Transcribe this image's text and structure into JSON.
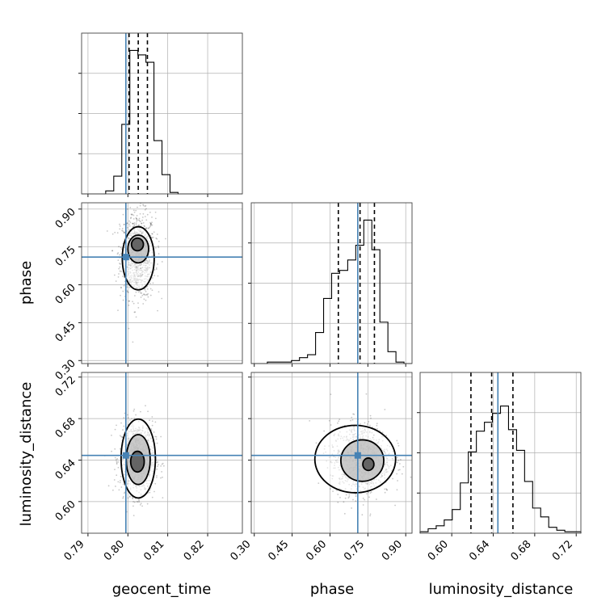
{
  "chart_data": {
    "type": "corner",
    "parameters": [
      "geocent_time",
      "phase",
      "luminosity_distance"
    ],
    "truths": {
      "geocent_time": 0.7995,
      "phase": 0.71,
      "luminosity_distance": 0.6445
    },
    "truth_color": "#4682b4",
    "ranges": {
      "geocent_time": [
        0.7884,
        0.8287
      ],
      "phase": [
        0.288,
        0.925
      ],
      "luminosity_distance": [
        0.5695,
        0.7245
      ]
    },
    "ticks": {
      "geocent_time": {
        "values": [
          0.79,
          0.8,
          0.81,
          0.82
        ],
        "labels": [
          "0.79",
          "0.80",
          "0.81",
          "0.82"
        ]
      },
      "phase": {
        "values": [
          0.3,
          0.45,
          0.6,
          0.75,
          0.9
        ],
        "labels": [
          "0.30",
          "0.45",
          "0.60",
          "0.75",
          "0.90"
        ]
      },
      "luminosity_distance": {
        "values": [
          0.6,
          0.64,
          0.68,
          0.72
        ],
        "labels": [
          "0.60",
          "0.64",
          "0.68",
          "0.72"
        ]
      }
    },
    "quantiles": {
      "geocent_time": [
        0.8003,
        0.8026,
        0.8049
      ],
      "phase": [
        0.633,
        0.719,
        0.776
      ],
      "luminosity_distance": [
        0.6185,
        0.6385,
        0.659
      ]
    },
    "histograms": {
      "geocent_time": {
        "edges_start": 0.7884,
        "bin_width": 0.002015,
        "counts": [
          0,
          0,
          0,
          0.02,
          0.12,
          0.47,
          0.97,
          0.94,
          0.89,
          0.36,
          0.13,
          0.01,
          0,
          0,
          0,
          0,
          0,
          0,
          0,
          0
        ]
      },
      "phase": {
        "edges_start": 0.288,
        "bin_width": 0.03185,
        "counts": [
          0,
          0,
          0.01,
          0.01,
          0.01,
          0.02,
          0.04,
          0.06,
          0.21,
          0.44,
          0.61,
          0.63,
          0.7,
          0.8,
          0.97,
          0.77,
          0.28,
          0.08,
          0.01,
          0
        ]
      },
      "luminosity_distance": {
        "edges_start": 0.5695,
        "bin_width": 0.00775,
        "counts": [
          0.01,
          0.03,
          0.05,
          0.09,
          0.16,
          0.34,
          0.55,
          0.69,
          0.75,
          0.81,
          0.86,
          0.7,
          0.56,
          0.35,
          0.17,
          0.11,
          0.04,
          0.02,
          0.01,
          0.01
        ]
      }
    },
    "density_2d": [
      {
        "x": "geocent_time",
        "y": "phase",
        "center": [
          0.8025,
          0.715
        ],
        "spread": [
          0.0022,
          0.085
        ],
        "levels": [
          {
            "cx": 0.8026,
            "cy": 0.705,
            "rx": 0.004,
            "ry": 0.125
          },
          {
            "cx": 0.8026,
            "cy": 0.742,
            "rx": 0.0026,
            "ry": 0.055
          },
          {
            "cx": 0.8024,
            "cy": 0.76,
            "rx": 0.0015,
            "ry": 0.025
          }
        ]
      },
      {
        "x": "geocent_time",
        "y": "luminosity_distance",
        "center": [
          0.8025,
          0.6415
        ],
        "spread": [
          0.0022,
          0.0175
        ],
        "levels": [
          {
            "cx": 0.8026,
            "cy": 0.6415,
            "rx": 0.0043,
            "ry": 0.038
          },
          {
            "cx": 0.8026,
            "cy": 0.6405,
            "rx": 0.003,
            "ry": 0.024
          },
          {
            "cx": 0.8024,
            "cy": 0.6385,
            "rx": 0.0017,
            "ry": 0.01
          }
        ]
      },
      {
        "x": "phase",
        "y": "luminosity_distance",
        "center": [
          0.722,
          0.641
        ],
        "spread": [
          0.06,
          0.0175
        ],
        "levels": [
          {
            "cx": 0.7,
            "cy": 0.641,
            "rx": 0.16,
            "ry": 0.0325
          },
          {
            "cx": 0.728,
            "cy": 0.6395,
            "rx": 0.085,
            "ry": 0.02
          },
          {
            "cx": 0.752,
            "cy": 0.636,
            "rx": 0.022,
            "ry": 0.006
          }
        ]
      }
    ]
  }
}
